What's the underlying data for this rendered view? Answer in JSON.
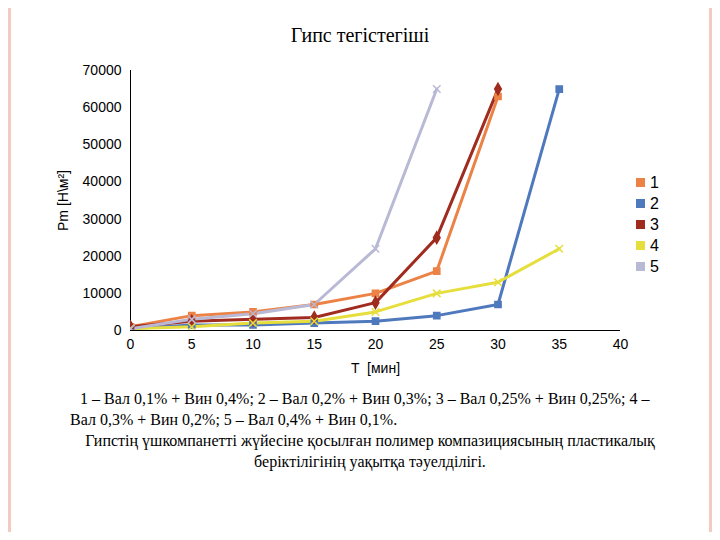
{
  "chart_data": {
    "type": "line",
    "title": "Гипс тегістегіші",
    "x_label": "T  [мин]",
    "y_label": "Pm [Н\\м²]",
    "x": [
      0,
      5,
      10,
      15,
      20,
      25,
      30,
      35
    ],
    "series": [
      {
        "name": "1",
        "color": "#ec8245",
        "marker": "square",
        "values": [
          1000,
          4000,
          5000,
          7000,
          10000,
          16000,
          63000,
          null
        ]
      },
      {
        "name": "2",
        "color": "#4f79bd",
        "marker": "square",
        "values": [
          500,
          1500,
          1500,
          2000,
          2500,
          4000,
          7000,
          65000
        ]
      },
      {
        "name": "3",
        "color": "#a02b1f",
        "marker": "diamond",
        "values": [
          1000,
          2500,
          3000,
          3500,
          7500,
          25000,
          65000,
          null
        ]
      },
      {
        "name": "4",
        "color": "#e6de3c",
        "marker": "x",
        "values": [
          500,
          1000,
          2000,
          2500,
          5000,
          10000,
          13000,
          22000
        ]
      },
      {
        "name": "5",
        "color": "#b9b9d6",
        "marker": "x",
        "values": [
          500,
          3000,
          4500,
          7000,
          22000,
          65000,
          null,
          null
        ]
      }
    ],
    "xlim": [
      0,
      40
    ],
    "xticks": [
      0,
      5,
      10,
      15,
      20,
      25,
      30,
      35,
      40
    ],
    "ylim": [
      0,
      70000
    ],
    "yticks": [
      0,
      10000,
      20000,
      30000,
      40000,
      50000,
      60000,
      70000
    ],
    "grid": false,
    "legend": "right",
    "annotations": [
      "1 – Вал 0,1% + Вин 0,4%; 2 – Вал 0,2% + Вин 0,3%; 3 – Вал 0,25% + Вин 0,25%; 4 – Вал 0,3% + Вин 0,2%; 5 – Вал 0,4% + Вин 0,1%.",
      "Гипстің үшкомпанетті жүйесіне қосылған полимер компазициясының пластикалық беріктілігінің уақытқа тәуелділігі."
    ]
  }
}
